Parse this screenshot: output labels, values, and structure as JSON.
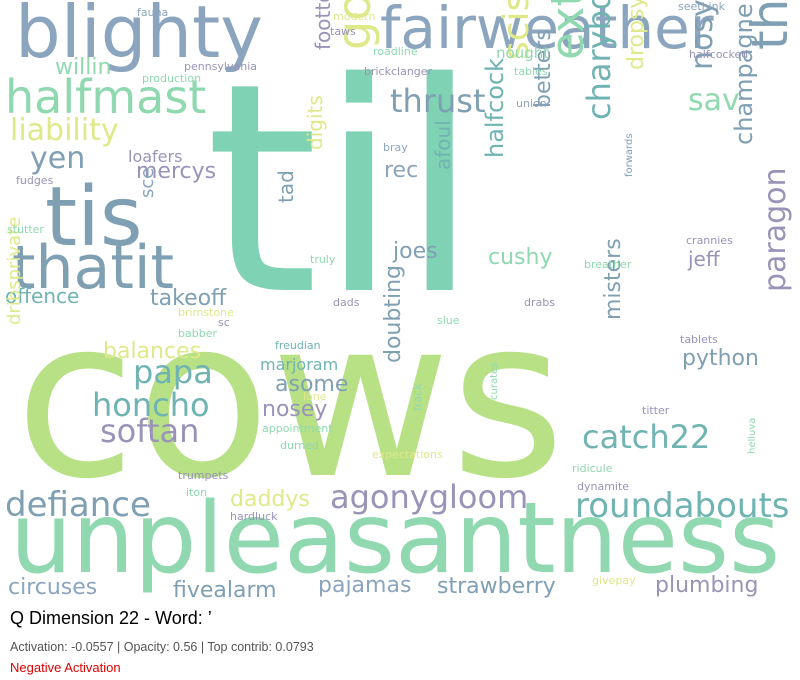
{
  "caption": {
    "title": "Q Dimension 22 - Word: ’",
    "stats": "Activation: -0.0557 | Opacity: 0.56 | Top contrib: 0.0793",
    "status": "Negative Activation",
    "status_color": "#dd0000"
  },
  "palette": {
    "lime": "#b8e186",
    "teal": "#7fd3b4",
    "mint": "#8fd8b0",
    "steel": "#8ba5be",
    "slate": "#7f9fb3",
    "purple": "#9a93b8",
    "yellow": "#dfe98a",
    "sea": "#6fb3b2"
  },
  "words": [
    {
      "text": "til",
      "c": "teal"
    },
    {
      "text": "cows",
      "c": "lime"
    },
    {
      "text": "unpleasantness",
      "c": "mint"
    },
    {
      "text": "tis",
      "c": "slate"
    },
    {
      "text": "blighty",
      "c": "steel"
    },
    {
      "text": "fairweather",
      "c": "steel"
    },
    {
      "text": "thatit",
      "c": "slate"
    },
    {
      "text": "halfmast",
      "c": "mint"
    },
    {
      "text": "thickens",
      "c": "slate"
    },
    {
      "text": "goliath",
      "c": "yellow"
    },
    {
      "text": "extreme",
      "c": "mint"
    },
    {
      "text": "roundabouts",
      "c": "sea"
    },
    {
      "text": "agonygloom",
      "c": "purple"
    },
    {
      "text": "defiance",
      "c": "slate"
    },
    {
      "text": "catch22",
      "c": "sea"
    },
    {
      "text": "paragon",
      "c": "purple"
    },
    {
      "text": "scissors",
      "c": "yellow"
    },
    {
      "text": "charybdis",
      "c": "sea"
    },
    {
      "text": "thrust",
      "c": "slate"
    },
    {
      "text": "liability",
      "c": "yellow"
    },
    {
      "text": "honcho",
      "c": "sea"
    },
    {
      "text": "softan",
      "c": "purple"
    },
    {
      "text": "papa",
      "c": "sea"
    },
    {
      "text": "nosy",
      "c": "slate"
    },
    {
      "text": "yen",
      "c": "slate"
    },
    {
      "text": "champagne",
      "c": "slate"
    },
    {
      "text": "sav",
      "c": "mint"
    },
    {
      "text": "dropsy",
      "c": "yellow"
    },
    {
      "text": "halfcock",
      "c": "sea"
    },
    {
      "text": "strawberry",
      "c": "slate"
    },
    {
      "text": "fivealarm",
      "c": "slate"
    },
    {
      "text": "pajamas",
      "c": "steel"
    },
    {
      "text": "circuses",
      "c": "steel"
    },
    {
      "text": "plumbing",
      "c": "purple"
    },
    {
      "text": "takeoff",
      "c": "slate"
    },
    {
      "text": "offence",
      "c": "sea"
    },
    {
      "text": "joes",
      "c": "slate"
    },
    {
      "text": "cushy",
      "c": "mint"
    },
    {
      "text": "python",
      "c": "slate"
    },
    {
      "text": "balances",
      "c": "yellow"
    },
    {
      "text": "asome",
      "c": "slate"
    },
    {
      "text": "nosey",
      "c": "purple"
    },
    {
      "text": "daddys",
      "c": "yellow"
    },
    {
      "text": "mercys",
      "c": "purple"
    },
    {
      "text": "willin",
      "c": "mint"
    },
    {
      "text": "misters",
      "c": "slate"
    },
    {
      "text": "doubting",
      "c": "slate"
    },
    {
      "text": "betters",
      "c": "slate"
    },
    {
      "text": "afoul",
      "c": "sea"
    },
    {
      "text": "digits",
      "c": "yellow"
    },
    {
      "text": "tad",
      "c": "slate"
    },
    {
      "text": "foottoe",
      "c": "purple"
    },
    {
      "text": "dribsprivate",
      "c": "yellow"
    },
    {
      "text": "jeff",
      "c": "purple"
    },
    {
      "text": "loafers",
      "c": "purple"
    },
    {
      "text": "marjoram",
      "c": "sea"
    },
    {
      "text": "rec",
      "c": "steel"
    },
    {
      "text": "sce",
      "c": "steel"
    },
    {
      "text": "nought",
      "c": "mint"
    },
    {
      "text": "fauna",
      "c": "steel"
    },
    {
      "text": "modern",
      "c": "yellow"
    },
    {
      "text": "seethink",
      "c": "steel"
    },
    {
      "text": "taws",
      "c": "purple"
    },
    {
      "text": "roadline",
      "c": "mint"
    },
    {
      "text": "halfcocked",
      "c": "purple"
    },
    {
      "text": "pennsylvania",
      "c": "purple"
    },
    {
      "text": "production",
      "c": "mint"
    },
    {
      "text": "brickclanger",
      "c": "purple"
    },
    {
      "text": "tables",
      "c": "mint"
    },
    {
      "text": "union",
      "c": "steel"
    },
    {
      "text": "bray",
      "c": "steel"
    },
    {
      "text": "fudges",
      "c": "purple"
    },
    {
      "text": "stutter",
      "c": "mint"
    },
    {
      "text": "forwards",
      "c": "slate"
    },
    {
      "text": "crannies",
      "c": "purple"
    },
    {
      "text": "truly",
      "c": "mint"
    },
    {
      "text": "breather",
      "c": "mint"
    },
    {
      "text": "brimstone",
      "c": "yellow"
    },
    {
      "text": "dads",
      "c": "purple"
    },
    {
      "text": "drabs",
      "c": "purple"
    },
    {
      "text": "babber",
      "c": "mint"
    },
    {
      "text": "sc",
      "c": "purple"
    },
    {
      "text": "slue",
      "c": "mint"
    },
    {
      "text": "tablets",
      "c": "purple"
    },
    {
      "text": "freudian",
      "c": "sea"
    },
    {
      "text": "lone",
      "c": "yellow"
    },
    {
      "text": "appointment",
      "c": "mint"
    },
    {
      "text": "durned",
      "c": "mint"
    },
    {
      "text": "curates",
      "c": "mint"
    },
    {
      "text": "titter",
      "c": "purple"
    },
    {
      "text": "frack",
      "c": "mint"
    },
    {
      "text": "expectations",
      "c": "yellow"
    },
    {
      "text": "ridicule",
      "c": "mint"
    },
    {
      "text": "helluva",
      "c": "mint"
    },
    {
      "text": "trumpets",
      "c": "purple"
    },
    {
      "text": "dynamite",
      "c": "purple"
    },
    {
      "text": "iton",
      "c": "mint"
    },
    {
      "text": "hardluck",
      "c": "purple"
    },
    {
      "text": "givepay",
      "c": "yellow"
    }
  ]
}
